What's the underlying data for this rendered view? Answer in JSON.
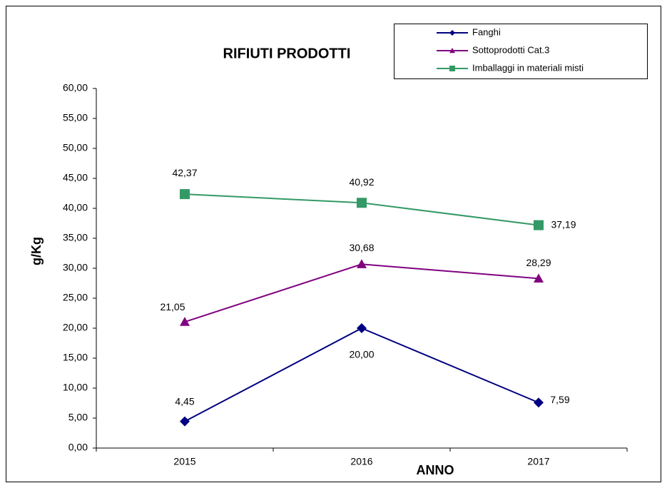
{
  "chart_data": {
    "type": "line",
    "title": "RIFIUTI PRODOTTI",
    "x_label": "ANNO",
    "y_label": "g/Kg",
    "categories": [
      "2015",
      "2016",
      "2017"
    ],
    "series": [
      {
        "name": "Fanghi",
        "color": "#000080",
        "marker": "diamond",
        "values": [
          4.45,
          20.0,
          7.59
        ],
        "value_labels": [
          "4,45",
          "20,00",
          "7,59"
        ]
      },
      {
        "name": "Sottoprodotti Cat.3",
        "color": "#800080",
        "marker": "triangle",
        "values": [
          21.05,
          30.68,
          28.29
        ],
        "value_labels": [
          "21,05",
          "30,68",
          "28,29"
        ]
      },
      {
        "name": "Imballaggi in materiali misti",
        "color": "#339966",
        "marker": "square",
        "values": [
          42.37,
          40.92,
          37.19
        ],
        "value_labels": [
          "42,37",
          "40,92",
          "37,19"
        ]
      }
    ],
    "ylim": [
      0,
      60
    ],
    "yticks": [
      {
        "value": 0,
        "label": "0,00"
      },
      {
        "value": 5,
        "label": "5,00"
      },
      {
        "value": 10,
        "label": "10,00"
      },
      {
        "value": 15,
        "label": "15,00"
      },
      {
        "value": 20,
        "label": "20,00"
      },
      {
        "value": 25,
        "label": "25,00"
      },
      {
        "value": 30,
        "label": "30,00"
      },
      {
        "value": 35,
        "label": "35,00"
      },
      {
        "value": 40,
        "label": "40,00"
      },
      {
        "value": 45,
        "label": "45,00"
      },
      {
        "value": 50,
        "label": "50,00"
      },
      {
        "value": 55,
        "label": "55,00"
      },
      {
        "value": 60,
        "label": "60,00"
      }
    ],
    "grid": false,
    "legend": "top-right"
  }
}
